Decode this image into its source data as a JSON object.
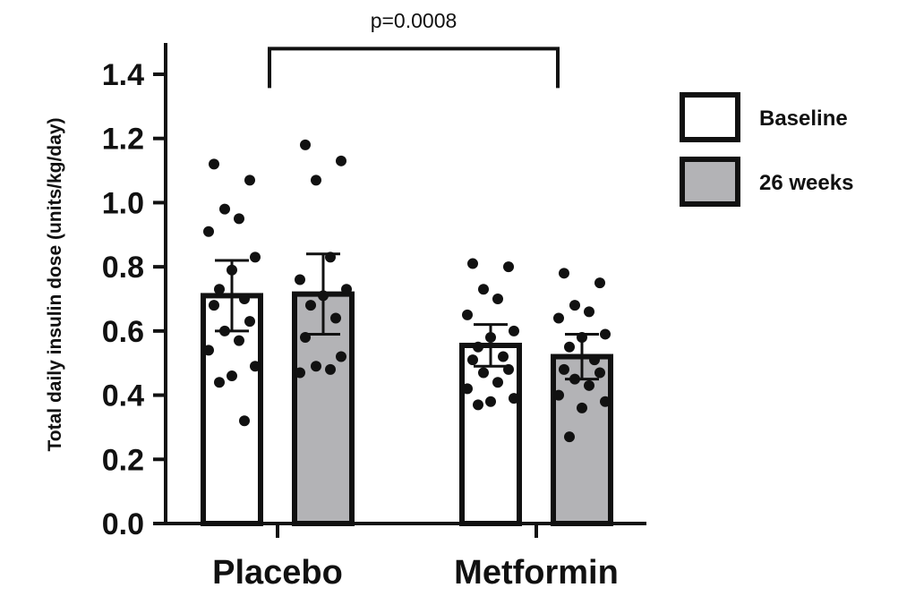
{
  "chart_data": {
    "type": "bar",
    "title": "",
    "xlabel": "",
    "ylabel": "Total daily insulin dose (units/kg/day)",
    "ylim": [
      0,
      1.5
    ],
    "yticks": [
      "0.0",
      "0.2",
      "0.4",
      "0.6",
      "0.8",
      "1.0",
      "1.2",
      "1.4"
    ],
    "categories": [
      "Placebo",
      "Metformin"
    ],
    "legend_position": "right",
    "grid": false,
    "series": [
      {
        "name": "Baseline",
        "color": "#ffffff",
        "values": [
          0.71,
          0.555
        ],
        "errors": [
          [
            0.6,
            0.82
          ],
          [
            0.49,
            0.62
          ]
        ],
        "points": [
          [
            1.12,
            1.07,
            0.98,
            0.95,
            0.91,
            0.83,
            0.79,
            0.73,
            0.7,
            0.68,
            0.63,
            0.6,
            0.57,
            0.54,
            0.49,
            0.46,
            0.44,
            0.32
          ],
          [
            0.81,
            0.8,
            0.73,
            0.7,
            0.65,
            0.6,
            0.58,
            0.55,
            0.52,
            0.51,
            0.48,
            0.47,
            0.44,
            0.42,
            0.39,
            0.38,
            0.37
          ]
        ]
      },
      {
        "name": "26 weeks",
        "color": "#b3b3b6",
        "values": [
          0.715,
          0.52
        ],
        "errors": [
          [
            0.59,
            0.84
          ],
          [
            0.45,
            0.59
          ]
        ],
        "points": [
          [
            1.18,
            1.13,
            1.07,
            0.83,
            0.76,
            0.73,
            0.71,
            0.68,
            0.64,
            0.58,
            0.52,
            0.49,
            0.48,
            0.47
          ],
          [
            0.78,
            0.75,
            0.68,
            0.66,
            0.64,
            0.59,
            0.58,
            0.55,
            0.51,
            0.48,
            0.47,
            0.45,
            0.43,
            0.4,
            0.38,
            0.36,
            0.27
          ]
        ]
      }
    ],
    "annotation": {
      "text": "p=0.0008",
      "from_category": "Placebo",
      "to_category": "Metformin",
      "y": 1.48
    }
  }
}
